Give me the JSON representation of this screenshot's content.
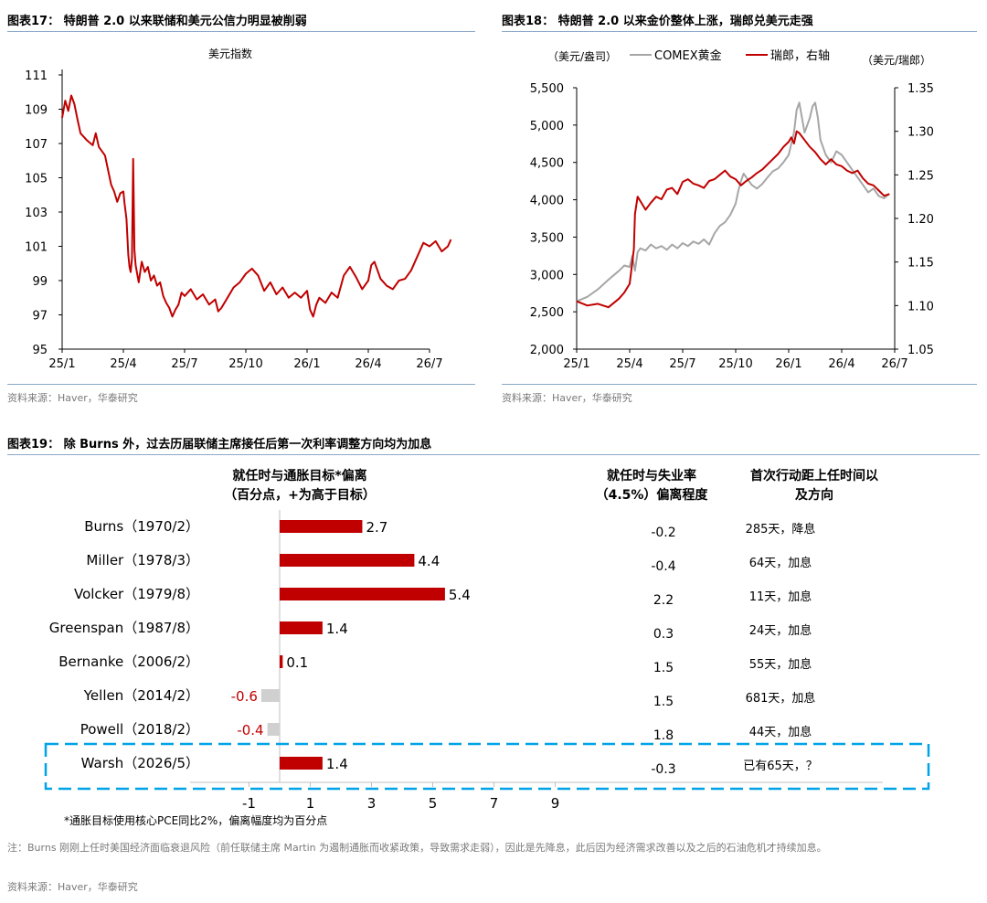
{
  "panel17": {
    "title": "图表17：  特朗普 2.0 以来联储和美元公信力明显被削弱",
    "source": "资料来源：Haver，华泰研究"
  },
  "panel18": {
    "title": "图表18：  特朗普 2.0 以来金价整体上涨，瑞郎兑美元走强",
    "source": "资料来源：Haver，华泰研究"
  },
  "panel19": {
    "title": "图表19：  除 Burns 外，过去历届联储主席接任后第一次利率调整方向均为加息",
    "note": "注：Burns 刚刚上任时美国经济面临衰退风险（前任联储主席 Martin 为遏制通胀而收紧政策，导致需求走弱），因此是先降息，此后因为经济需求改善以及之后的石油危机才持续加息。",
    "source": "资料来源：Haver，华泰研究"
  },
  "colors": {
    "red": "#c00000",
    "gray": "#a6a6a6",
    "lightgray": "#d0d0d0",
    "blue": "#00a2e8"
  },
  "chart_data": [
    {
      "id": "dxy",
      "type": "line",
      "title": "美元指数",
      "x_ticks": [
        "25/1",
        "25/4",
        "25/7",
        "25/10",
        "26/1",
        "26/4",
        "26/7"
      ],
      "ylim": [
        95,
        111
      ],
      "y_ticks": [
        95,
        97,
        99,
        101,
        103,
        105,
        107,
        109,
        111
      ],
      "series": [
        {
          "name": "美元指数",
          "color": "#c00000",
          "points": [
            [
              0,
              108.5
            ],
            [
              0.05,
              109.5
            ],
            [
              0.1,
              108.9
            ],
            [
              0.15,
              109.8
            ],
            [
              0.2,
              109.3
            ],
            [
              0.25,
              108.4
            ],
            [
              0.3,
              107.6
            ],
            [
              0.4,
              107.2
            ],
            [
              0.5,
              106.9
            ],
            [
              0.55,
              107.6
            ],
            [
              0.6,
              106.8
            ],
            [
              0.7,
              106.3
            ],
            [
              0.8,
              104.6
            ],
            [
              0.85,
              104.2
            ],
            [
              0.9,
              103.6
            ],
            [
              0.95,
              104.1
            ],
            [
              1.0,
              104.2
            ],
            [
              1.02,
              103.5
            ],
            [
              1.05,
              102.6
            ],
            [
              1.08,
              100.5
            ],
            [
              1.1,
              99.8
            ],
            [
              1.12,
              99.5
            ],
            [
              1.14,
              100.3
            ],
            [
              1.16,
              106.1
            ],
            [
              1.18,
              100.8
            ],
            [
              1.2,
              99.9
            ],
            [
              1.25,
              98.9
            ],
            [
              1.3,
              100.1
            ],
            [
              1.35,
              99.5
            ],
            [
              1.4,
              99.8
            ],
            [
              1.45,
              99.0
            ],
            [
              1.5,
              99.3
            ],
            [
              1.55,
              98.7
            ],
            [
              1.6,
              98.9
            ],
            [
              1.65,
              98.1
            ],
            [
              1.7,
              97.7
            ],
            [
              1.75,
              97.4
            ],
            [
              1.8,
              96.9
            ],
            [
              1.85,
              97.3
            ],
            [
              1.9,
              97.6
            ],
            [
              1.95,
              98.3
            ],
            [
              2.0,
              98.1
            ],
            [
              2.1,
              98.5
            ],
            [
              2.2,
              97.9
            ],
            [
              2.3,
              98.2
            ],
            [
              2.4,
              97.6
            ],
            [
              2.5,
              97.9
            ],
            [
              2.55,
              97.2
            ],
            [
              2.6,
              97.4
            ],
            [
              2.7,
              98.0
            ],
            [
              2.8,
              98.6
            ],
            [
              2.9,
              98.9
            ],
            [
              3.0,
              99.4
            ],
            [
              3.1,
              99.7
            ],
            [
              3.2,
              99.3
            ],
            [
              3.3,
              98.4
            ],
            [
              3.4,
              98.9
            ],
            [
              3.5,
              98.2
            ],
            [
              3.6,
              98.6
            ],
            [
              3.7,
              98.0
            ],
            [
              3.8,
              98.3
            ],
            [
              3.9,
              98.0
            ],
            [
              4.0,
              98.4
            ],
            [
              4.05,
              97.3
            ],
            [
              4.1,
              96.9
            ],
            [
              4.15,
              97.6
            ],
            [
              4.2,
              98.0
            ],
            [
              4.3,
              97.7
            ],
            [
              4.4,
              98.3
            ],
            [
              4.5,
              98.0
            ],
            [
              4.6,
              99.3
            ],
            [
              4.7,
              99.8
            ],
            [
              4.8,
              99.2
            ],
            [
              4.9,
              98.5
            ],
            [
              5.0,
              99.0
            ],
            [
              5.05,
              99.9
            ],
            [
              5.1,
              100.1
            ],
            [
              5.2,
              99.1
            ],
            [
              5.3,
              98.7
            ],
            [
              5.4,
              98.5
            ],
            [
              5.5,
              99.0
            ],
            [
              5.6,
              99.1
            ],
            [
              5.7,
              99.6
            ],
            [
              5.8,
              100.4
            ],
            [
              5.9,
              101.2
            ],
            [
              6.0,
              101.0
            ],
            [
              6.1,
              101.3
            ],
            [
              6.2,
              100.7
            ],
            [
              6.3,
              101.0
            ],
            [
              6.35,
              101.4
            ]
          ]
        }
      ]
    },
    {
      "id": "gold_chf",
      "type": "line",
      "legend": [
        "COMEX黄金",
        "瑞郎，右轴"
      ],
      "left_unit": "（美元/盎司）",
      "right_unit": "（美元/瑞郎）",
      "x_ticks": [
        "25/1",
        "25/4",
        "25/7",
        "25/10",
        "26/1",
        "26/4",
        "26/7"
      ],
      "ylim_left": [
        2000,
        5500
      ],
      "y_ticks_left": [
        "2,000",
        "2,500",
        "3,000",
        "3,500",
        "4,000",
        "4,500",
        "5,000",
        "5,500"
      ],
      "ylim_right": [
        1.05,
        1.35
      ],
      "y_ticks_right": [
        "1.05",
        "1.10",
        "1.15",
        "1.20",
        "1.25",
        "1.30",
        "1.35"
      ],
      "series": [
        {
          "name": "COMEX黄金",
          "axis": "left",
          "color": "#a6a6a6",
          "points": [
            [
              0,
              2640
            ],
            [
              0.2,
              2700
            ],
            [
              0.4,
              2800
            ],
            [
              0.6,
              2930
            ],
            [
              0.8,
              3050
            ],
            [
              0.9,
              3120
            ],
            [
              1.0,
              3100
            ],
            [
              1.05,
              3250
            ],
            [
              1.1,
              3050
            ],
            [
              1.15,
              3300
            ],
            [
              1.2,
              3350
            ],
            [
              1.3,
              3320
            ],
            [
              1.4,
              3400
            ],
            [
              1.5,
              3350
            ],
            [
              1.6,
              3380
            ],
            [
              1.7,
              3330
            ],
            [
              1.8,
              3400
            ],
            [
              1.9,
              3350
            ],
            [
              2.0,
              3420
            ],
            [
              2.1,
              3380
            ],
            [
              2.2,
              3440
            ],
            [
              2.3,
              3410
            ],
            [
              2.4,
              3470
            ],
            [
              2.5,
              3400
            ],
            [
              2.6,
              3550
            ],
            [
              2.7,
              3650
            ],
            [
              2.8,
              3700
            ],
            [
              2.9,
              3800
            ],
            [
              3.0,
              3950
            ],
            [
              3.05,
              4120
            ],
            [
              3.1,
              4250
            ],
            [
              3.15,
              4350
            ],
            [
              3.2,
              4300
            ],
            [
              3.3,
              4200
            ],
            [
              3.4,
              4150
            ],
            [
              3.5,
              4210
            ],
            [
              3.6,
              4300
            ],
            [
              3.7,
              4380
            ],
            [
              3.8,
              4420
            ],
            [
              3.9,
              4500
            ],
            [
              4.0,
              4600
            ],
            [
              4.05,
              4750
            ],
            [
              4.1,
              4900
            ],
            [
              4.15,
              5200
            ],
            [
              4.2,
              5300
            ],
            [
              4.25,
              5100
            ],
            [
              4.3,
              4900
            ],
            [
              4.35,
              5000
            ],
            [
              4.4,
              5100
            ],
            [
              4.45,
              5250
            ],
            [
              4.5,
              5300
            ],
            [
              4.55,
              5100
            ],
            [
              4.6,
              4800
            ],
            [
              4.7,
              4600
            ],
            [
              4.8,
              4500
            ],
            [
              4.9,
              4650
            ],
            [
              5.0,
              4600
            ],
            [
              5.1,
              4500
            ],
            [
              5.2,
              4400
            ],
            [
              5.3,
              4300
            ],
            [
              5.4,
              4200
            ],
            [
              5.5,
              4100
            ],
            [
              5.6,
              4150
            ],
            [
              5.7,
              4050
            ],
            [
              5.8,
              4020
            ],
            [
              5.9,
              4080
            ]
          ]
        },
        {
          "name": "瑞郎，右轴",
          "axis": "right",
          "color": "#c00000",
          "points": [
            [
              0,
              1.105
            ],
            [
              0.2,
              1.1
            ],
            [
              0.4,
              1.102
            ],
            [
              0.6,
              1.098
            ],
            [
              0.8,
              1.108
            ],
            [
              0.9,
              1.115
            ],
            [
              1.0,
              1.125
            ],
            [
              1.05,
              1.15
            ],
            [
              1.08,
              1.165
            ],
            [
              1.1,
              1.205
            ],
            [
              1.15,
              1.225
            ],
            [
              1.2,
              1.22
            ],
            [
              1.3,
              1.21
            ],
            [
              1.4,
              1.218
            ],
            [
              1.5,
              1.225
            ],
            [
              1.6,
              1.222
            ],
            [
              1.7,
              1.233
            ],
            [
              1.8,
              1.235
            ],
            [
              1.9,
              1.228
            ],
            [
              2.0,
              1.242
            ],
            [
              2.1,
              1.245
            ],
            [
              2.2,
              1.24
            ],
            [
              2.3,
              1.238
            ],
            [
              2.4,
              1.235
            ],
            [
              2.5,
              1.243
            ],
            [
              2.6,
              1.245
            ],
            [
              2.7,
              1.25
            ],
            [
              2.8,
              1.255
            ],
            [
              2.9,
              1.248
            ],
            [
              3.0,
              1.245
            ],
            [
              3.1,
              1.238
            ],
            [
              3.2,
              1.243
            ],
            [
              3.3,
              1.247
            ],
            [
              3.4,
              1.252
            ],
            [
              3.5,
              1.256
            ],
            [
              3.6,
              1.262
            ],
            [
              3.7,
              1.268
            ],
            [
              3.8,
              1.274
            ],
            [
              3.9,
              1.282
            ],
            [
              4.0,
              1.288
            ],
            [
              4.05,
              1.293
            ],
            [
              4.1,
              1.286
            ],
            [
              4.15,
              1.3
            ],
            [
              4.2,
              1.298
            ],
            [
              4.3,
              1.29
            ],
            [
              4.4,
              1.282
            ],
            [
              4.5,
              1.276
            ],
            [
              4.6,
              1.268
            ],
            [
              4.7,
              1.262
            ],
            [
              4.8,
              1.268
            ],
            [
              4.9,
              1.262
            ],
            [
              5.0,
              1.26
            ],
            [
              5.1,
              1.255
            ],
            [
              5.2,
              1.252
            ],
            [
              5.3,
              1.255
            ],
            [
              5.4,
              1.246
            ],
            [
              5.5,
              1.24
            ],
            [
              5.6,
              1.238
            ],
            [
              5.7,
              1.232
            ],
            [
              5.8,
              1.226
            ],
            [
              5.9,
              1.228
            ]
          ]
        }
      ]
    },
    {
      "id": "fed_chairs",
      "type": "bar",
      "orientation": "horizontal",
      "header_deviation": [
        "就任时与通胀目标*偏离",
        "（百分点，+为高于目标）"
      ],
      "header_unemp": [
        "就任时与失业率",
        "（4.5%）偏离程度"
      ],
      "header_first": [
        "首次行动距上任时间以",
        "及方向"
      ],
      "x_ticks": [
        "-1",
        "1",
        "3",
        "5",
        "7",
        "9"
      ],
      "xlim": [
        -1.5,
        10
      ],
      "footnote": "*通胀目标使用核心PCE同比2%，偏离幅度均为百分点",
      "rows": [
        {
          "chair": "Burns（1970/2）",
          "deviation": 2.7,
          "label": "2.7",
          "unemp": "-0.2",
          "first": "285天，降息"
        },
        {
          "chair": "Miller（1978/3）",
          "deviation": 4.4,
          "label": "4.4",
          "unemp": "-0.4",
          "first": "64天，加息"
        },
        {
          "chair": "Volcker（1979/8）",
          "deviation": 5.4,
          "label": "5.4",
          "unemp": "2.2",
          "first": "11天，加息"
        },
        {
          "chair": "Greenspan（1987/8）",
          "deviation": 1.4,
          "label": "1.4",
          "unemp": "0.3",
          "first": "24天，加息"
        },
        {
          "chair": "Bernanke（2006/2）",
          "deviation": 0.1,
          "label": "0.1",
          "unemp": "1.5",
          "first": "55天，加息"
        },
        {
          "chair": "Yellen（2014/2）",
          "deviation": -0.6,
          "label": "-0.6",
          "unemp": "1.5",
          "first": "681天，加息"
        },
        {
          "chair": "Powell（2018/2）",
          "deviation": -0.4,
          "label": "-0.4",
          "unemp": "1.8",
          "first": "44天，加息"
        },
        {
          "chair": "Warsh（2026/5）",
          "deviation": 1.4,
          "label": "1.4",
          "unemp": "-0.3",
          "first": "已有65天，？",
          "highlight": true
        }
      ]
    }
  ]
}
